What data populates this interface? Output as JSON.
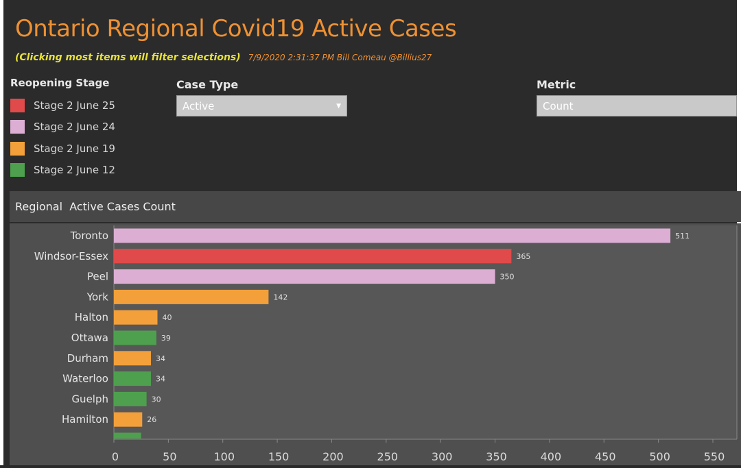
{
  "header": {
    "title": "Ontario Regional Covid19  Active Cases",
    "subtitle": "(Clicking most items will filter selections)",
    "byline": "7/9/2020 2:31:37 PM  Bill Comeau @Billius27"
  },
  "legend": {
    "title": "Reopening Stage",
    "items": [
      {
        "label": "Stage 2 June 25",
        "color": "#e04a4a"
      },
      {
        "label": "Stage 2 June 24",
        "color": "#dcaed3"
      },
      {
        "label": "Stage 2 June 19",
        "color": "#f3a03a"
      },
      {
        "label": "Stage 2 June 12",
        "color": "#4ea04e"
      }
    ]
  },
  "filters": {
    "case_type": {
      "label": "Case Type",
      "value": "Active"
    },
    "metric": {
      "label": "Metric",
      "value": "Count"
    }
  },
  "panel": {
    "title": "Regional  Active Cases Count"
  },
  "chart_data": {
    "type": "bar",
    "orientation": "horizontal",
    "title": "Regional  Active Cases Count",
    "categories": [
      "Toronto",
      "Windsor-Essex",
      "Peel",
      "York",
      "Halton",
      "Ottawa",
      "Durham",
      "Waterloo",
      "Guelph",
      "Hamilton"
    ],
    "values": [
      511,
      365,
      350,
      142,
      40,
      39,
      34,
      34,
      30,
      26
    ],
    "stages": [
      "Stage 2 June 24",
      "Stage 2 June 25",
      "Stage 2 June 24",
      "Stage 2 June 19",
      "Stage 2 June 19",
      "Stage 2 June 12",
      "Stage 2 June 19",
      "Stage 2 June 12",
      "Stage 2 June 12",
      "Stage 2 June 19"
    ],
    "partial_last_bar": {
      "stage": "Stage 2 June 12",
      "value": 25
    },
    "xlim": [
      0,
      550
    ],
    "xticks": [
      0,
      50,
      100,
      150,
      200,
      250,
      300,
      350,
      400,
      450,
      500,
      550
    ],
    "grid": false
  }
}
